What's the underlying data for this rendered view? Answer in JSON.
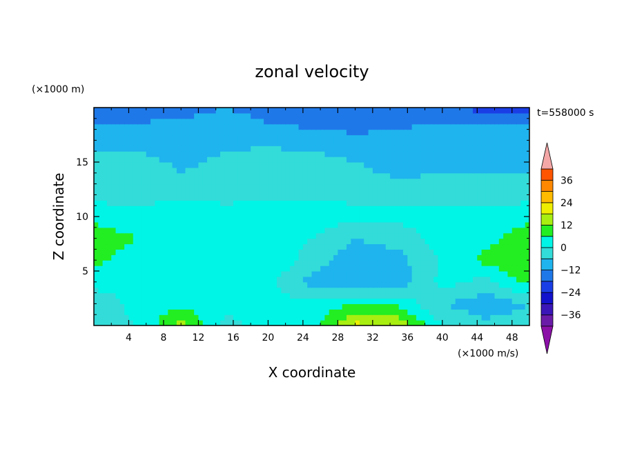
{
  "chart_data": {
    "type": "heatmap",
    "title": "zonal velocity",
    "xlabel": "X coordinate",
    "ylabel": "Z coordinate",
    "x_unit": "(×1000 m/s)",
    "y_unit": "(×1000 m)",
    "time_label": "t=558000 s",
    "xlim": [
      0,
      50
    ],
    "ylim": [
      0,
      20
    ],
    "xticks": [
      4,
      8,
      12,
      16,
      20,
      24,
      28,
      32,
      36,
      40,
      44,
      48
    ],
    "yticks": [
      5,
      10,
      15
    ],
    "colorbar": {
      "levels": [
        -42,
        -36,
        -30,
        -24,
        -18,
        -12,
        -6,
        0,
        6,
        12,
        18,
        24,
        30,
        36,
        42
      ],
      "tick_labels": [
        36,
        24,
        12,
        0,
        -12,
        -24,
        -36
      ],
      "colors": [
        "#6a1ba8",
        "#3a16b8",
        "#1212cc",
        "#1a3ee6",
        "#1f78e8",
        "#1fb4ee",
        "#33dcd8",
        "#00f5e6",
        "#22ee22",
        "#a8ee10",
        "#eeee00",
        "#ffbb00",
        "#ff8800",
        "#ff5500",
        "#ee1a1a"
      ],
      "over_color": "#f4a7a7",
      "under_color": "#8b10a8"
    },
    "field": {
      "x": [
        0,
        5,
        10,
        15,
        20,
        25,
        30,
        35,
        40,
        45,
        50
      ],
      "z": [
        0,
        2,
        4,
        6,
        8,
        10,
        12,
        14,
        16,
        18,
        20
      ],
      "values": [
        [
          -2,
          0,
          14,
          -2,
          2,
          4,
          20,
          16,
          0,
          -4,
          -3
        ],
        [
          -4,
          2,
          5,
          2,
          4,
          1,
          6,
          5,
          -6,
          -10,
          -6
        ],
        [
          2,
          2,
          4,
          1,
          1,
          -8,
          -12,
          -10,
          2,
          -2,
          8
        ],
        [
          8,
          2,
          6,
          0,
          6,
          -3,
          -10,
          -8,
          1,
          8,
          12
        ],
        [
          10,
          6,
          3,
          2,
          3,
          0,
          -6,
          -4,
          3,
          4,
          10
        ],
        [
          4,
          2,
          4,
          3,
          5,
          4,
          1,
          2,
          3,
          3,
          4
        ],
        [
          -2,
          -2,
          -1,
          -2,
          -2,
          -1,
          -1,
          -2,
          -3,
          -4,
          -2
        ],
        [
          -4,
          -4,
          -6,
          -5,
          -3,
          -4,
          -5,
          -7,
          -6,
          -6,
          -6
        ],
        [
          -6,
          -6,
          -7,
          -6,
          -5,
          -6,
          -7,
          -8,
          -7,
          -7,
          -7
        ],
        [
          -9,
          -10,
          -10,
          -9,
          -11,
          -12,
          -13,
          -12,
          -10,
          -10,
          -10
        ],
        [
          -18,
          -16,
          -14,
          -12,
          -14,
          -14,
          -14,
          -16,
          -17,
          -20,
          -22
        ]
      ]
    }
  }
}
